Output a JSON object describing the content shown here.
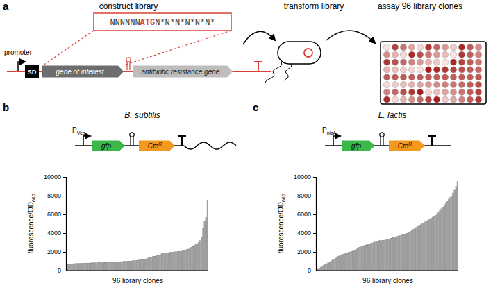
{
  "diagram": {
    "panel_label": "a",
    "steps": [
      "construct library",
      "transform library",
      "assay 96 library clones"
    ],
    "sequence": [
      "NNNNNN",
      "ATG",
      "N*N*N*N*N*N*"
    ],
    "promoter": "promoter",
    "sd": "SD",
    "gene_of_interest": "gene of interest",
    "resistance_gene": "antibiotic resistance gene"
  },
  "chart_data": [
    {
      "type": "bar",
      "panel_label": "b",
      "title": "B. subtilis",
      "promoter": {
        "text": "P",
        "subscript": "Veg"
      },
      "genes": [
        {
          "text": "gfp"
        },
        {
          "text": "Cm",
          "superscript": "R"
        }
      ],
      "y_label": {
        "text": "fluorescence/OD",
        "subscript": "600"
      },
      "x_label": "96 library clones",
      "categories": [
        null,
        null,
        null,
        null,
        null,
        null,
        null,
        null,
        null,
        null,
        null,
        null,
        null,
        null,
        null,
        null,
        null,
        null,
        null,
        null,
        null,
        null,
        null,
        null,
        null,
        null,
        null,
        null,
        null,
        null,
        null,
        null,
        null,
        null,
        null,
        null,
        null,
        null,
        null,
        null,
        null,
        null,
        null,
        null,
        null,
        null,
        null,
        null,
        null,
        null,
        null,
        null,
        null,
        null,
        null,
        null,
        null,
        null,
        null,
        null,
        null,
        null,
        null,
        null,
        null,
        null,
        null,
        null,
        null,
        null,
        null,
        null,
        null,
        null,
        null,
        null,
        null,
        null,
        null,
        null,
        null,
        null,
        null,
        null,
        null,
        null,
        null,
        null,
        null,
        null,
        null,
        null,
        null,
        null,
        null,
        null
      ],
      "values": [
        700,
        710,
        720,
        730,
        740,
        750,
        760,
        760,
        770,
        780,
        790,
        790,
        800,
        800,
        810,
        820,
        820,
        830,
        840,
        840,
        850,
        850,
        860,
        870,
        870,
        880,
        880,
        890,
        900,
        900,
        910,
        920,
        920,
        930,
        940,
        950,
        960,
        970,
        980,
        990,
        1000,
        1010,
        1020,
        1040,
        1050,
        1070,
        1080,
        1100,
        1120,
        1150,
        1180,
        1200,
        1230,
        1260,
        1300,
        1350,
        1400,
        1450,
        1500,
        1550,
        1600,
        1650,
        1700,
        1750,
        1800,
        1850,
        1880,
        1900,
        1920,
        1950,
        1970,
        1990,
        2000,
        2010,
        2020,
        2040,
        2060,
        2080,
        2100,
        2150,
        2200,
        2250,
        2300,
        2400,
        2500,
        2600,
        2700,
        2800,
        2900,
        3000,
        3200,
        3600,
        4500,
        5300,
        5700,
        7500
      ],
      "color": "#a6a6a6",
      "ylim": [
        0,
        10000
      ],
      "yticks": [
        0,
        2000,
        4000,
        6000,
        8000,
        10000
      ],
      "tick_labels": "y"
    },
    {
      "type": "bar",
      "panel_label": "c",
      "title": "L. lactis",
      "promoter": {
        "text": "P",
        "subscript": "nisA"
      },
      "genes": [
        {
          "text": "gfp"
        },
        {
          "text": "Cm",
          "superscript": "R"
        }
      ],
      "y_label": {
        "text": "fluorescence/OD",
        "subscript": "600"
      },
      "x_label": "96 library clones",
      "categories": [
        null,
        null,
        null,
        null,
        null,
        null,
        null,
        null,
        null,
        null,
        null,
        null,
        null,
        null,
        null,
        null,
        null,
        null,
        null,
        null,
        null,
        null,
        null,
        null,
        null,
        null,
        null,
        null,
        null,
        null,
        null,
        null,
        null,
        null,
        null,
        null,
        null,
        null,
        null,
        null,
        null,
        null,
        null,
        null,
        null,
        null,
        null,
        null,
        null,
        null,
        null,
        null,
        null,
        null,
        null,
        null,
        null,
        null,
        null,
        null,
        null,
        null,
        null,
        null,
        null,
        null,
        null,
        null,
        null,
        null,
        null,
        null,
        null,
        null,
        null,
        null,
        null,
        null,
        null,
        null,
        null,
        null,
        null,
        null,
        null,
        null,
        null,
        null,
        null,
        null,
        null,
        null,
        null,
        null,
        null,
        null
      ],
      "values": [
        150,
        250,
        350,
        450,
        550,
        650,
        750,
        850,
        950,
        1050,
        1150,
        1250,
        1350,
        1450,
        1550,
        1650,
        1700,
        1750,
        1800,
        1850,
        1900,
        1950,
        2000,
        2050,
        2100,
        2200,
        2300,
        2400,
        2500,
        2550,
        2600,
        2650,
        2700,
        2750,
        2800,
        2850,
        2900,
        2950,
        3000,
        3050,
        3100,
        3150,
        3200,
        3200,
        3250,
        3250,
        3300,
        3300,
        3350,
        3400,
        3450,
        3500,
        3550,
        3600,
        3650,
        3700,
        3750,
        3800,
        3850,
        3900,
        3950,
        4000,
        4100,
        4200,
        4300,
        4400,
        4500,
        4600,
        4700,
        4800,
        4900,
        5000,
        5100,
        5200,
        5300,
        5400,
        5500,
        5600,
        5700,
        5800,
        5900,
        6000,
        6200,
        6400,
        6600,
        6800,
        7000,
        7200,
        7400,
        7600,
        7800,
        8000,
        8300,
        8600,
        9000,
        9500
      ],
      "color": "#a6a6a6",
      "ylim": [
        0,
        10000
      ],
      "yticks": [
        0,
        2000,
        4000,
        6000,
        8000,
        10000
      ],
      "tick_labels": "y"
    }
  ]
}
